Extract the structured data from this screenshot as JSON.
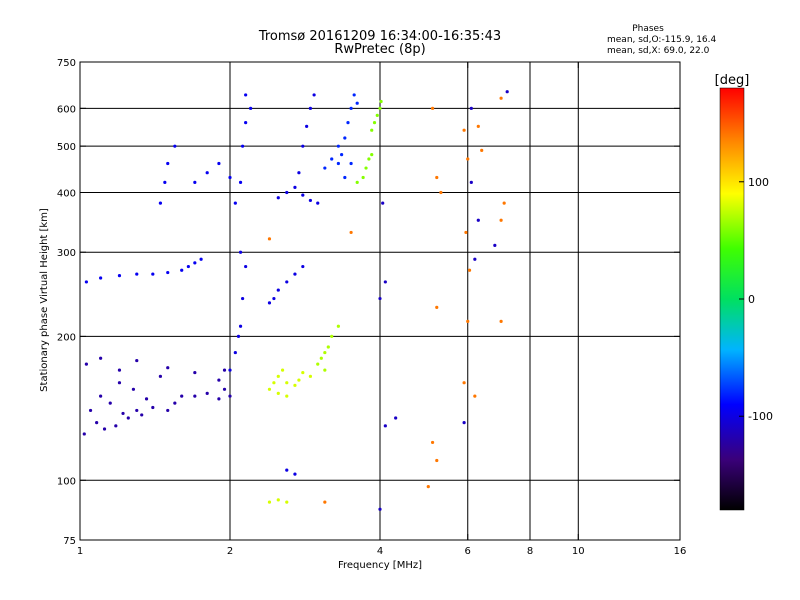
{
  "chart_data": {
    "type": "scatter",
    "title": "Tromsø 20161209 16:34:00-16:35:43",
    "subtitle": "RwPretec (8p)",
    "info": {
      "heading": "Phases",
      "line1": "mean, sd,O:-115.9, 16.4",
      "line2": "mean, sd,X:  69.0, 22.0"
    },
    "xlabel": "Frequency [MHz]",
    "ylabel": "Stationary phase Virtual Height [km]",
    "xscale": "log",
    "yscale": "log",
    "xlim": [
      1,
      16
    ],
    "ylim": [
      75,
      750
    ],
    "xticks": [
      1,
      2,
      4,
      6,
      8,
      10,
      16
    ],
    "xtick_labels": [
      "1",
      "2",
      "4",
      "6",
      "8",
      "10",
      "16"
    ],
    "yticks": [
      75,
      100,
      200,
      300,
      400,
      500,
      600,
      750
    ],
    "ytick_labels": [
      "75",
      "100",
      "200",
      "300",
      "400",
      "500",
      "600",
      "750"
    ],
    "grid_x": [
      2,
      4,
      6,
      8,
      10
    ],
    "grid_y": [
      100,
      200,
      300,
      400,
      500,
      600
    ],
    "colorbar": {
      "label": "[deg]",
      "range": [
        -180,
        180
      ],
      "ticks": [
        100,
        0,
        -100
      ],
      "tick_labels": [
        "100",
        "0",
        "-100"
      ]
    },
    "series": [
      {
        "color_phase": -120,
        "points": [
          [
            1.02,
            125
          ],
          [
            1.05,
            140
          ],
          [
            1.08,
            132
          ],
          [
            1.1,
            150
          ],
          [
            1.12,
            128
          ],
          [
            1.15,
            145
          ],
          [
            1.18,
            130
          ],
          [
            1.2,
            160
          ],
          [
            1.22,
            138
          ],
          [
            1.25,
            135
          ],
          [
            1.28,
            155
          ],
          [
            1.3,
            140
          ],
          [
            1.33,
            137
          ],
          [
            1.36,
            148
          ],
          [
            1.4,
            142
          ],
          [
            1.45,
            165
          ],
          [
            1.5,
            140
          ],
          [
            1.55,
            145
          ],
          [
            1.6,
            150
          ],
          [
            1.7,
            150
          ],
          [
            1.8,
            152
          ],
          [
            1.9,
            148
          ],
          [
            1.95,
            155
          ],
          [
            2.0,
            150
          ],
          [
            1.03,
            175
          ],
          [
            1.1,
            180
          ],
          [
            1.2,
            170
          ],
          [
            1.3,
            178
          ],
          [
            1.5,
            172
          ],
          [
            1.7,
            168
          ],
          [
            1.9,
            162
          ],
          [
            1.95,
            170
          ]
        ]
      },
      {
        "color_phase": -95,
        "points": [
          [
            1.03,
            260
          ],
          [
            1.1,
            265
          ],
          [
            1.2,
            268
          ],
          [
            1.3,
            270
          ],
          [
            1.4,
            270
          ],
          [
            1.5,
            272
          ],
          [
            1.6,
            275
          ],
          [
            1.65,
            280
          ],
          [
            1.7,
            285
          ],
          [
            1.75,
            290
          ],
          [
            1.45,
            380
          ],
          [
            1.48,
            420
          ],
          [
            1.5,
            460
          ],
          [
            1.55,
            500
          ],
          [
            1.7,
            420
          ],
          [
            1.8,
            440
          ],
          [
            1.9,
            460
          ],
          [
            2.0,
            430
          ],
          [
            2.05,
            380
          ],
          [
            2.1,
            420
          ],
          [
            2.12,
            500
          ],
          [
            2.15,
            560
          ],
          [
            2.2,
            600
          ],
          [
            2.15,
            640
          ]
        ]
      },
      {
        "color_phase": -100,
        "points": [
          [
            2.0,
            170
          ],
          [
            2.05,
            185
          ],
          [
            2.08,
            200
          ],
          [
            2.1,
            210
          ],
          [
            2.12,
            240
          ],
          [
            2.15,
            280
          ],
          [
            2.1,
            300
          ],
          [
            2.4,
            235
          ],
          [
            2.45,
            240
          ],
          [
            2.5,
            250
          ],
          [
            2.6,
            260
          ],
          [
            2.7,
            270
          ],
          [
            2.8,
            280
          ],
          [
            2.5,
            390
          ],
          [
            2.6,
            400
          ],
          [
            2.7,
            410
          ],
          [
            2.8,
            395
          ],
          [
            2.9,
            385
          ],
          [
            3.0,
            380
          ],
          [
            2.75,
            440
          ],
          [
            2.8,
            500
          ],
          [
            2.85,
            550
          ],
          [
            2.9,
            600
          ],
          [
            2.95,
            640
          ],
          [
            2.6,
            105
          ],
          [
            2.7,
            103
          ]
        ]
      },
      {
        "color_phase": -80,
        "points": [
          [
            3.1,
            450
          ],
          [
            3.2,
            470
          ],
          [
            3.3,
            500
          ],
          [
            3.4,
            520
          ],
          [
            3.45,
            560
          ],
          [
            3.5,
            600
          ],
          [
            3.55,
            640
          ],
          [
            3.6,
            615
          ],
          [
            3.3,
            460
          ],
          [
            3.35,
            480
          ],
          [
            3.4,
            430
          ],
          [
            3.5,
            460
          ]
        ]
      },
      {
        "color_phase": 80,
        "points": [
          [
            2.4,
            155
          ],
          [
            2.45,
            160
          ],
          [
            2.5,
            165
          ],
          [
            2.55,
            170
          ],
          [
            2.6,
            160
          ],
          [
            2.7,
            158
          ],
          [
            2.75,
            162
          ],
          [
            2.8,
            168
          ],
          [
            2.9,
            165
          ],
          [
            2.5,
            152
          ],
          [
            2.6,
            150
          ],
          [
            2.4,
            90
          ],
          [
            2.5,
            91
          ],
          [
            2.6,
            90
          ]
        ]
      },
      {
        "color_phase": 70,
        "points": [
          [
            3.0,
            175
          ],
          [
            3.05,
            180
          ],
          [
            3.1,
            185
          ],
          [
            3.15,
            190
          ],
          [
            3.2,
            200
          ],
          [
            3.3,
            210
          ],
          [
            3.1,
            170
          ]
        ]
      },
      {
        "color_phase": 60,
        "points": [
          [
            3.6,
            420
          ],
          [
            3.7,
            430
          ],
          [
            3.75,
            450
          ],
          [
            3.8,
            470
          ],
          [
            3.85,
            480
          ],
          [
            3.9,
            560
          ],
          [
            3.95,
            580
          ],
          [
            4.0,
            600
          ],
          [
            4.02,
            620
          ],
          [
            3.85,
            540
          ]
        ]
      },
      {
        "color_phase": 140,
        "points": [
          [
            5.1,
            600
          ],
          [
            5.2,
            430
          ],
          [
            5.3,
            400
          ],
          [
            5.2,
            230
          ],
          [
            5.1,
            120
          ],
          [
            5.2,
            110
          ],
          [
            5.0,
            97
          ],
          [
            5.9,
            540
          ],
          [
            6.0,
            470
          ],
          [
            5.95,
            330
          ],
          [
            6.05,
            275
          ],
          [
            6.0,
            215
          ],
          [
            5.9,
            160
          ],
          [
            6.3,
            550
          ],
          [
            6.4,
            490
          ],
          [
            7.0,
            630
          ],
          [
            7.1,
            380
          ],
          [
            7.0,
            350
          ],
          [
            7.0,
            215
          ],
          [
            2.4,
            320
          ],
          [
            3.1,
            90
          ],
          [
            3.5,
            330
          ],
          [
            6.2,
            150
          ]
        ]
      },
      {
        "color_phase": -110,
        "points": [
          [
            4.05,
            380
          ],
          [
            4.1,
            260
          ],
          [
            4.0,
            240
          ],
          [
            4.1,
            130
          ],
          [
            4.3,
            135
          ],
          [
            5.9,
            132
          ],
          [
            6.2,
            290
          ],
          [
            6.3,
            350
          ],
          [
            6.8,
            310
          ],
          [
            6.1,
            600
          ],
          [
            4.0,
            87
          ],
          [
            7.2,
            650
          ],
          [
            6.1,
            420
          ]
        ]
      }
    ]
  }
}
